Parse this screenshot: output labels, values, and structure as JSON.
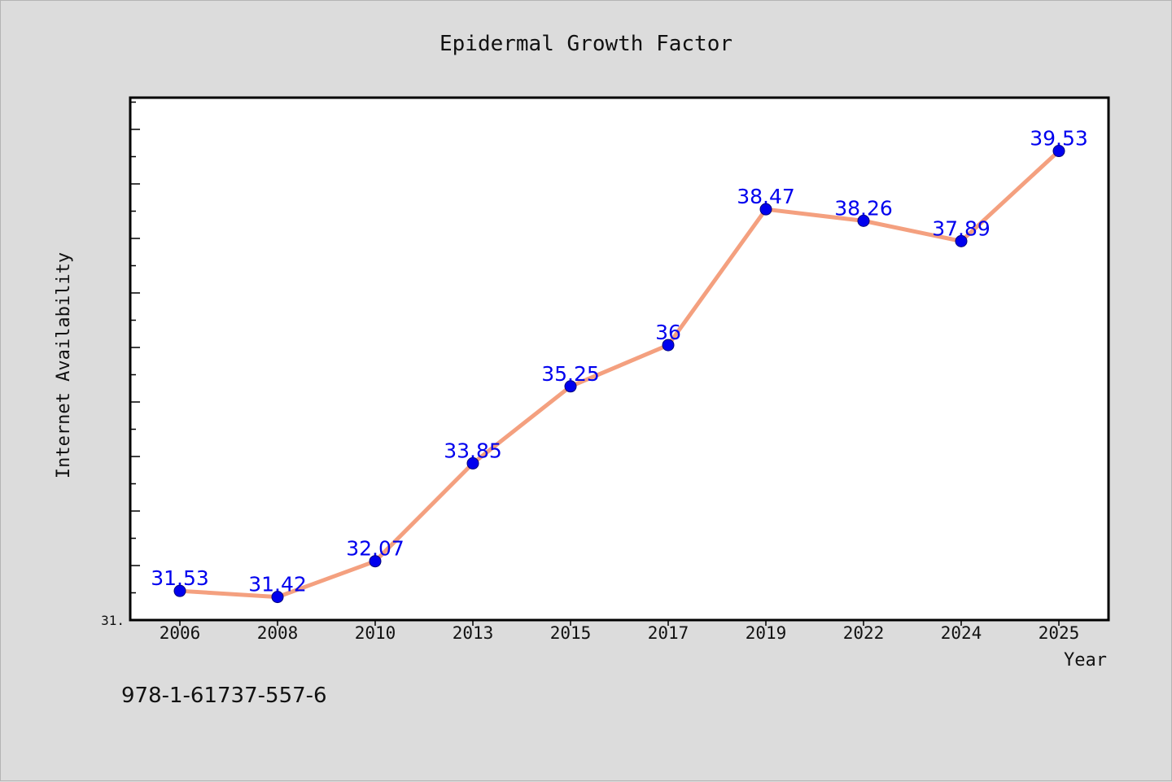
{
  "chart_data": {
    "type": "line",
    "title": "Epidermal Growth Factor",
    "xlabel": "Year",
    "ylabel": "Internet Availability",
    "categories": [
      "2006",
      "2008",
      "2010",
      "2013",
      "2015",
      "2017",
      "2019",
      "2022",
      "2024",
      "2025"
    ],
    "series": [
      {
        "values": [
          31.53,
          31.42,
          32.07,
          33.85,
          35.25,
          36,
          38.47,
          38.26,
          37.89,
          39.53
        ],
        "data_labels": [
          "31.53",
          "31.42",
          "32.07",
          "33.85",
          "35.25",
          "36",
          "38.47",
          "38.26",
          "37.89",
          "39.53"
        ]
      }
    ],
    "ylim": [
      31,
      40.5
    ],
    "y_tick_label": "31.",
    "grid": false,
    "legend": "none",
    "colors": {
      "line": "#f4a07f",
      "marker": "#0000ee",
      "data_label": "#0000ee",
      "plot_background": "#ffffff",
      "page_background": "#dcdcdc"
    }
  },
  "footer_text": "978-1-61737-557-6"
}
